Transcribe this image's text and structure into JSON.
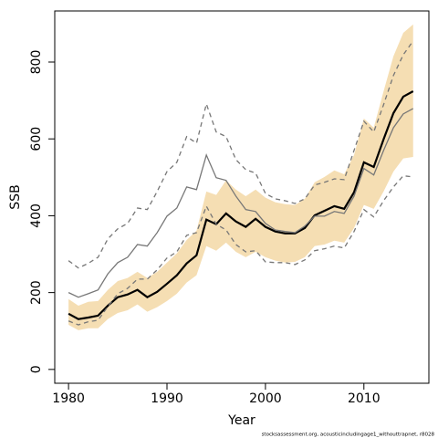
{
  "chart_data": {
    "type": "line",
    "xlabel": "Year",
    "ylabel": "SSB",
    "source": "stocksassessment.org, acousticincludingage1_withouttrapnet, r8028",
    "x": [
      1980,
      1981,
      1982,
      1983,
      1984,
      1985,
      1986,
      1987,
      1988,
      1989,
      1990,
      1991,
      1992,
      1993,
      1994,
      1995,
      1996,
      1997,
      1998,
      1999,
      2000,
      2001,
      2002,
      2003,
      2004,
      2005,
      2006,
      2007,
      2008,
      2009,
      2010,
      2011,
      2012,
      2013,
      2014,
      2015
    ],
    "band": {
      "color": "#f5deb3",
      "upper": [
        183,
        166,
        176,
        178,
        207,
        230,
        238,
        254,
        238,
        254,
        278,
        302,
        337,
        361,
        463,
        454,
        492,
        468,
        451,
        468,
        447,
        435,
        430,
        428,
        444,
        487,
        501,
        518,
        508,
        558,
        653,
        629,
        724,
        815,
        876,
        898
      ],
      "lower": [
        116,
        102,
        107,
        107,
        131,
        147,
        154,
        169,
        150,
        162,
        178,
        197,
        226,
        245,
        321,
        309,
        330,
        306,
        292,
        306,
        292,
        283,
        278,
        280,
        292,
        321,
        325,
        335,
        330,
        368,
        428,
        418,
        463,
        515,
        549,
        553
      ]
    },
    "series": [
      {
        "color": "#000000",
        "width": 2.2,
        "dashed": false,
        "values": [
          145,
          131,
          135,
          140,
          166,
          188,
          195,
          207,
          188,
          202,
          223,
          245,
          276,
          297,
          390,
          378,
          406,
          385,
          371,
          392,
          371,
          359,
          354,
          354,
          368,
          401,
          413,
          425,
          418,
          461,
          539,
          527,
          599,
          667,
          710,
          724
        ]
      },
      {
        "color": "#777777",
        "width": 1.3,
        "dashed": false,
        "values": [
          200,
          188,
          197,
          207,
          249,
          278,
          292,
          325,
          321,
          356,
          399,
          420,
          475,
          468,
          558,
          499,
          492,
          451,
          416,
          411,
          380,
          363,
          359,
          356,
          373,
          399,
          399,
          411,
          406,
          451,
          523,
          506,
          570,
          629,
          665,
          679
        ]
      },
      {
        "color": "#777777",
        "width": 1.3,
        "dashed": true,
        "values": [
          283,
          264,
          276,
          292,
          340,
          366,
          380,
          420,
          416,
          463,
          515,
          539,
          606,
          589,
          691,
          618,
          606,
          546,
          520,
          511,
          458,
          444,
          439,
          432,
          444,
          480,
          487,
          496,
          494,
          570,
          646,
          618,
          689,
          765,
          819,
          855
        ]
      },
      {
        "color": "#777777",
        "width": 1.3,
        "dashed": true,
        "values": [
          126,
          116,
          124,
          128,
          164,
          197,
          211,
          235,
          235,
          259,
          290,
          306,
          349,
          356,
          425,
          378,
          363,
          325,
          306,
          309,
          280,
          278,
          278,
          273,
          285,
          309,
          314,
          321,
          316,
          359,
          416,
          397,
          439,
          475,
          504,
          501
        ]
      }
    ],
    "xlim": [
      1978.6,
      2016.6
    ],
    "ylim": [
      -36,
      933
    ],
    "xticks": [
      1980,
      1990,
      2000,
      2010
    ],
    "yticks": [
      0,
      200,
      400,
      600,
      800
    ]
  }
}
